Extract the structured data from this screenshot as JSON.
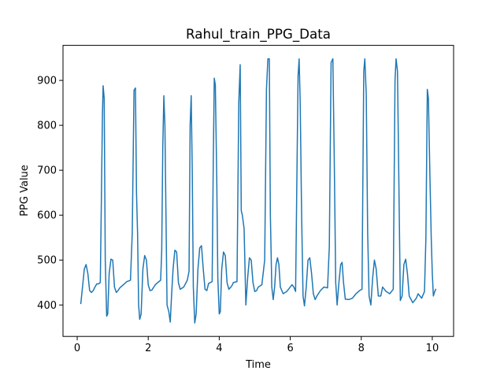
{
  "chart_data": {
    "type": "line",
    "title": "Rahul_train_PPG_Data",
    "x_label": "Time",
    "y_label": "PPG Value",
    "color": "#1f77b4",
    "xlim": [
      -0.4,
      10.6
    ],
    "ylim": [
      330,
      978
    ],
    "xticks": [
      0,
      2,
      4,
      6,
      8,
      10
    ],
    "yticks": [
      400,
      500,
      600,
      700,
      800,
      900
    ],
    "x": [
      0.1,
      0.15,
      0.2,
      0.25,
      0.3,
      0.35,
      0.4,
      0.45,
      0.5,
      0.55,
      0.6,
      0.65,
      0.68,
      0.71,
      0.73,
      0.76,
      0.79,
      0.83,
      0.86,
      0.9,
      0.95,
      1.0,
      1.05,
      1.1,
      1.15,
      1.2,
      1.3,
      1.4,
      1.5,
      1.55,
      1.6,
      1.64,
      1.67,
      1.7,
      1.73,
      1.76,
      1.8,
      1.85,
      1.9,
      1.95,
      2.0,
      2.05,
      2.1,
      2.2,
      2.3,
      2.35,
      2.38,
      2.41,
      2.44,
      2.47,
      2.5,
      2.53,
      2.58,
      2.62,
      2.66,
      2.7,
      2.75,
      2.8,
      2.85,
      2.9,
      3.0,
      3.1,
      3.15,
      3.18,
      3.21,
      3.24,
      3.27,
      3.31,
      3.35,
      3.4,
      3.45,
      3.5,
      3.55,
      3.6,
      3.65,
      3.7,
      3.8,
      3.83,
      3.86,
      3.89,
      3.93,
      3.96,
      4.0,
      4.03,
      4.07,
      4.12,
      4.17,
      4.22,
      4.27,
      4.35,
      4.4,
      4.5,
      4.55,
      4.59,
      4.62,
      4.65,
      4.7,
      4.75,
      4.8,
      4.85,
      4.9,
      4.95,
      5.0,
      5.05,
      5.1,
      5.2,
      5.28,
      5.33,
      5.37,
      5.41,
      5.44,
      5.48,
      5.52,
      5.56,
      5.6,
      5.64,
      5.68,
      5.72,
      5.8,
      5.9,
      6.0,
      6.05,
      6.1,
      6.15,
      6.22,
      6.25,
      6.28,
      6.32,
      6.36,
      6.4,
      6.45,
      6.5,
      6.55,
      6.6,
      6.65,
      6.7,
      6.75,
      6.85,
      6.95,
      7.05,
      7.1,
      7.15,
      7.2,
      7.24,
      7.28,
      7.32,
      7.37,
      7.42,
      7.46,
      7.5,
      7.55,
      7.65,
      7.75,
      7.85,
      7.95,
      8.02,
      8.07,
      8.1,
      8.14,
      8.18,
      8.22,
      8.27,
      8.32,
      8.37,
      8.42,
      8.48,
      8.55,
      8.6,
      8.7,
      8.8,
      8.9,
      8.95,
      8.98,
      9.02,
      9.07,
      9.1,
      9.15,
      9.2,
      9.25,
      9.3,
      9.35,
      9.45,
      9.55,
      9.6,
      9.7,
      9.78,
      9.82,
      9.86,
      9.89,
      9.93,
      9.97,
      10.0,
      10.03,
      10.06,
      10.1
    ],
    "values": [
      402,
      440,
      480,
      490,
      470,
      432,
      428,
      432,
      440,
      447,
      447,
      450,
      630,
      820,
      888,
      860,
      500,
      375,
      380,
      470,
      502,
      500,
      440,
      428,
      432,
      438,
      445,
      452,
      455,
      560,
      878,
      883,
      650,
      560,
      400,
      368,
      380,
      480,
      510,
      500,
      445,
      432,
      433,
      445,
      452,
      455,
      520,
      750,
      866,
      800,
      600,
      400,
      385,
      362,
      425,
      480,
      522,
      518,
      450,
      435,
      440,
      455,
      475,
      800,
      866,
      700,
      440,
      360,
      380,
      480,
      527,
      532,
      480,
      435,
      432,
      448,
      452,
      700,
      905,
      890,
      680,
      460,
      380,
      385,
      480,
      518,
      510,
      450,
      435,
      442,
      450,
      452,
      850,
      935,
      610,
      600,
      570,
      400,
      460,
      505,
      500,
      450,
      430,
      432,
      440,
      445,
      500,
      880,
      948,
      948,
      600,
      440,
      412,
      440,
      490,
      505,
      490,
      440,
      425,
      430,
      440,
      445,
      440,
      430,
      910,
      948,
      850,
      600,
      420,
      398,
      440,
      500,
      505,
      470,
      425,
      412,
      420,
      432,
      440,
      438,
      530,
      940,
      948,
      720,
      450,
      400,
      450,
      490,
      495,
      450,
      413,
      412,
      415,
      425,
      432,
      435,
      920,
      948,
      870,
      560,
      420,
      400,
      460,
      500,
      480,
      420,
      420,
      440,
      430,
      425,
      435,
      900,
      948,
      920,
      600,
      410,
      420,
      490,
      502,
      470,
      420,
      405,
      415,
      425,
      415,
      430,
      550,
      880,
      860,
      700,
      550,
      470,
      420,
      428,
      436
    ]
  }
}
